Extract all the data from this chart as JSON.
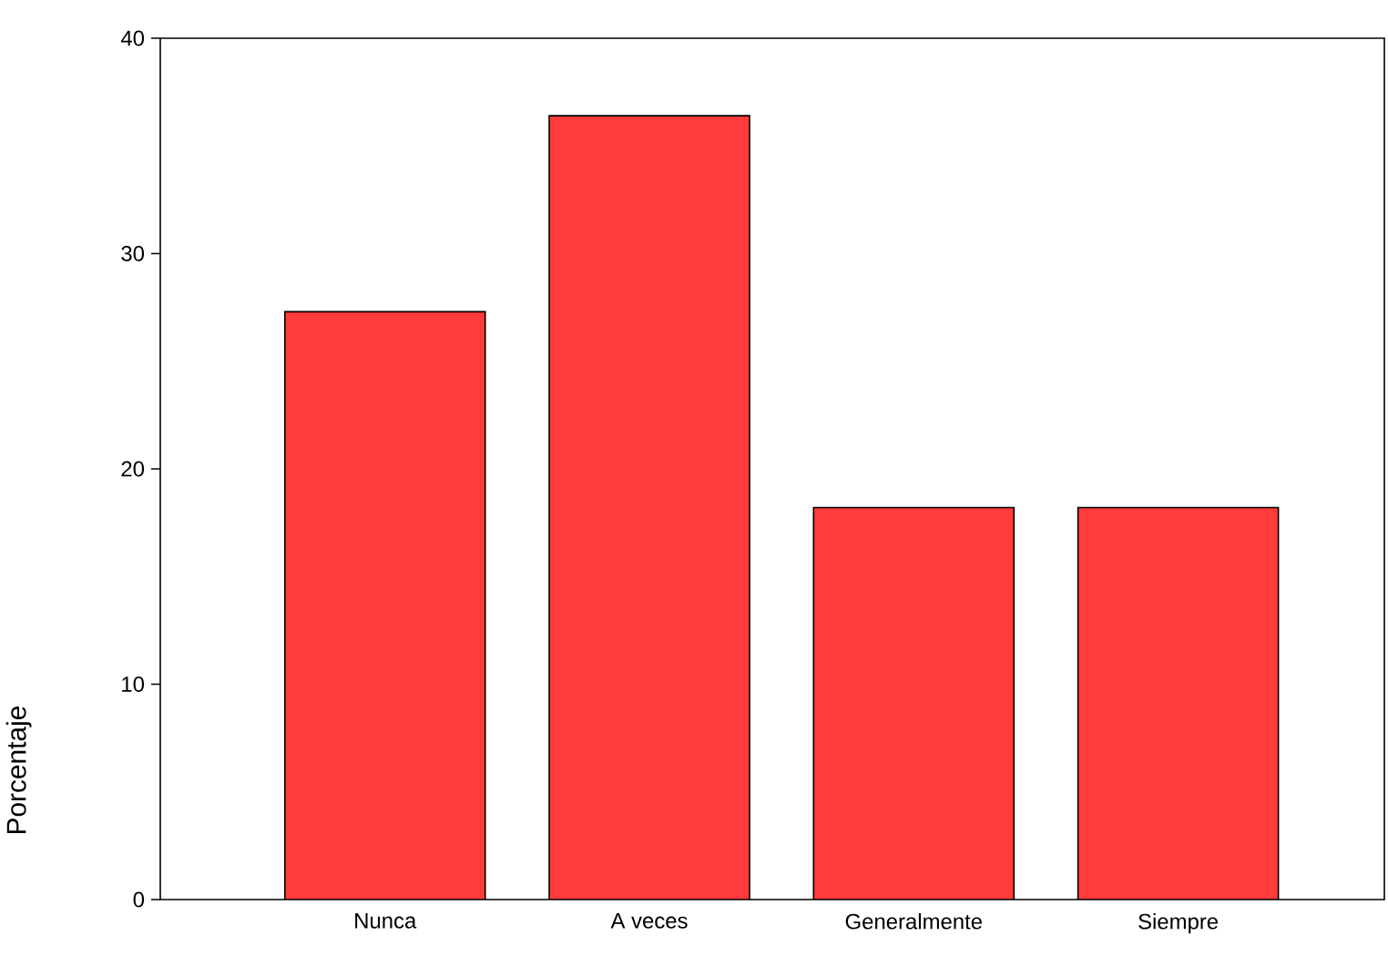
{
  "chart_data": {
    "type": "bar",
    "ylabel": "Porcentaje",
    "categories": [
      "Nunca",
      "A veces",
      "Generalmente",
      "Siempre"
    ],
    "values": [
      27.3,
      36.4,
      18.2,
      18.2
    ],
    "color": "#ff3b3b",
    "ylim": [
      0,
      40
    ],
    "yticks": [
      0,
      10,
      20,
      30,
      40
    ],
    "grid": false
  }
}
